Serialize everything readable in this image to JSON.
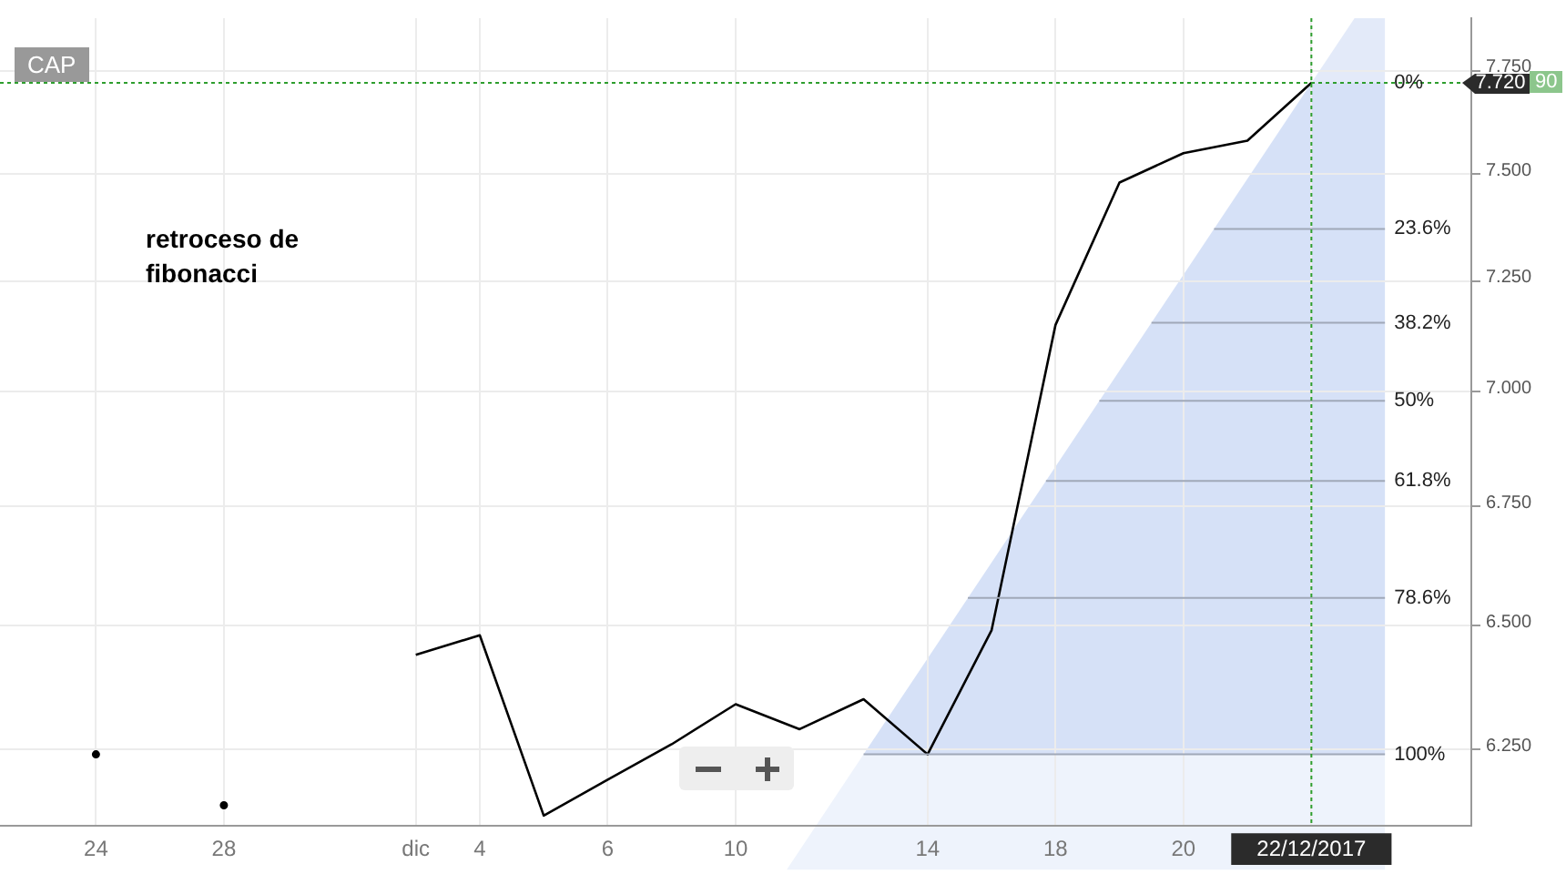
{
  "chart_data": {
    "type": "line",
    "categories": [
      null,
      "24",
      null,
      "28",
      null,
      null,
      "dic",
      "4",
      null,
      "6",
      null,
      "10",
      null,
      null,
      "14",
      null,
      "18",
      null,
      "20",
      null,
      "22/12/2017",
      null,
      null
    ],
    "values": [
      null,
      6.24,
      null,
      6.14,
      null,
      null,
      6.44,
      6.48,
      6.12,
      6.19,
      6.26,
      6.34,
      6.29,
      6.35,
      6.24,
      6.49,
      7.15,
      7.48,
      7.55,
      7.58,
      7.72,
      null,
      null
    ],
    "color": "#000000",
    "log": "y",
    "ylim": [
      6.11,
      7.88
    ],
    "yticks": [
      {
        "value": 6.25,
        "label": "6.250"
      },
      {
        "value": 6.5,
        "label": "6.500"
      },
      {
        "value": 6.75,
        "label": "6.750"
      },
      {
        "value": 7.0,
        "label": "7.000"
      },
      {
        "value": 7.25,
        "label": "7.250"
      },
      {
        "value": 7.5,
        "label": "7.500"
      },
      {
        "value": 7.75,
        "label": "7.750"
      }
    ],
    "grid": true,
    "legend": false,
    "marker": "none",
    "line_style": "solid",
    "ref_lines": [
      {
        "axis": "y",
        "value": 7.72,
        "label": "7.720",
        "color": "#2e9e2e",
        "line_style": "dotted"
      },
      {
        "axis": "y",
        "value": 7.371,
        "color": "#a0a8b8",
        "line_style": "solid"
      },
      {
        "axis": "y",
        "value": 7.155,
        "color": "#a0a8b8",
        "line_style": "solid"
      },
      {
        "axis": "y",
        "value": 6.98,
        "color": "#a0a8b8",
        "line_style": "solid"
      },
      {
        "axis": "y",
        "value": 6.805,
        "color": "#a0a8b8",
        "line_style": "solid"
      },
      {
        "axis": "y",
        "value": 6.557,
        "color": "#a0a8b8",
        "line_style": "solid"
      },
      {
        "axis": "y",
        "value": 6.24,
        "color": "#a0a8b8",
        "line_style": "solid"
      },
      {
        "axis": "x",
        "value": "22/12/2017",
        "color": "#2e9e2e",
        "line_style": "dotted"
      }
    ],
    "annotations": [
      "CAP",
      "retroceso de fibonacci",
      "90",
      "0%",
      "23.6%",
      "38.2%",
      "50%",
      "61.8%",
      "78.6%",
      "100%"
    ]
  }
}
